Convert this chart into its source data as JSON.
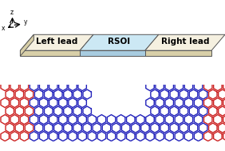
{
  "fig_width": 2.82,
  "fig_height": 1.89,
  "dpi": 100,
  "top_panel": {
    "left_lead_color": "#f5f0e0",
    "rsoi_color": "#cce8f4",
    "right_lead_color": "#f5f0e0",
    "edge_color": "#555555",
    "side_color": "#d8cfa8",
    "rsoi_side_color": "#a8cce0",
    "left_lead_label": "Left lead",
    "rsoi_label": "RSOI",
    "right_lead_label": "Right lead",
    "label_fontsize": 7.5,
    "label_fontweight": "bold"
  },
  "bottom_panel": {
    "blue_color": "#2222bb",
    "red_color": "#cc2222",
    "hex_linewidth": 1.0
  }
}
